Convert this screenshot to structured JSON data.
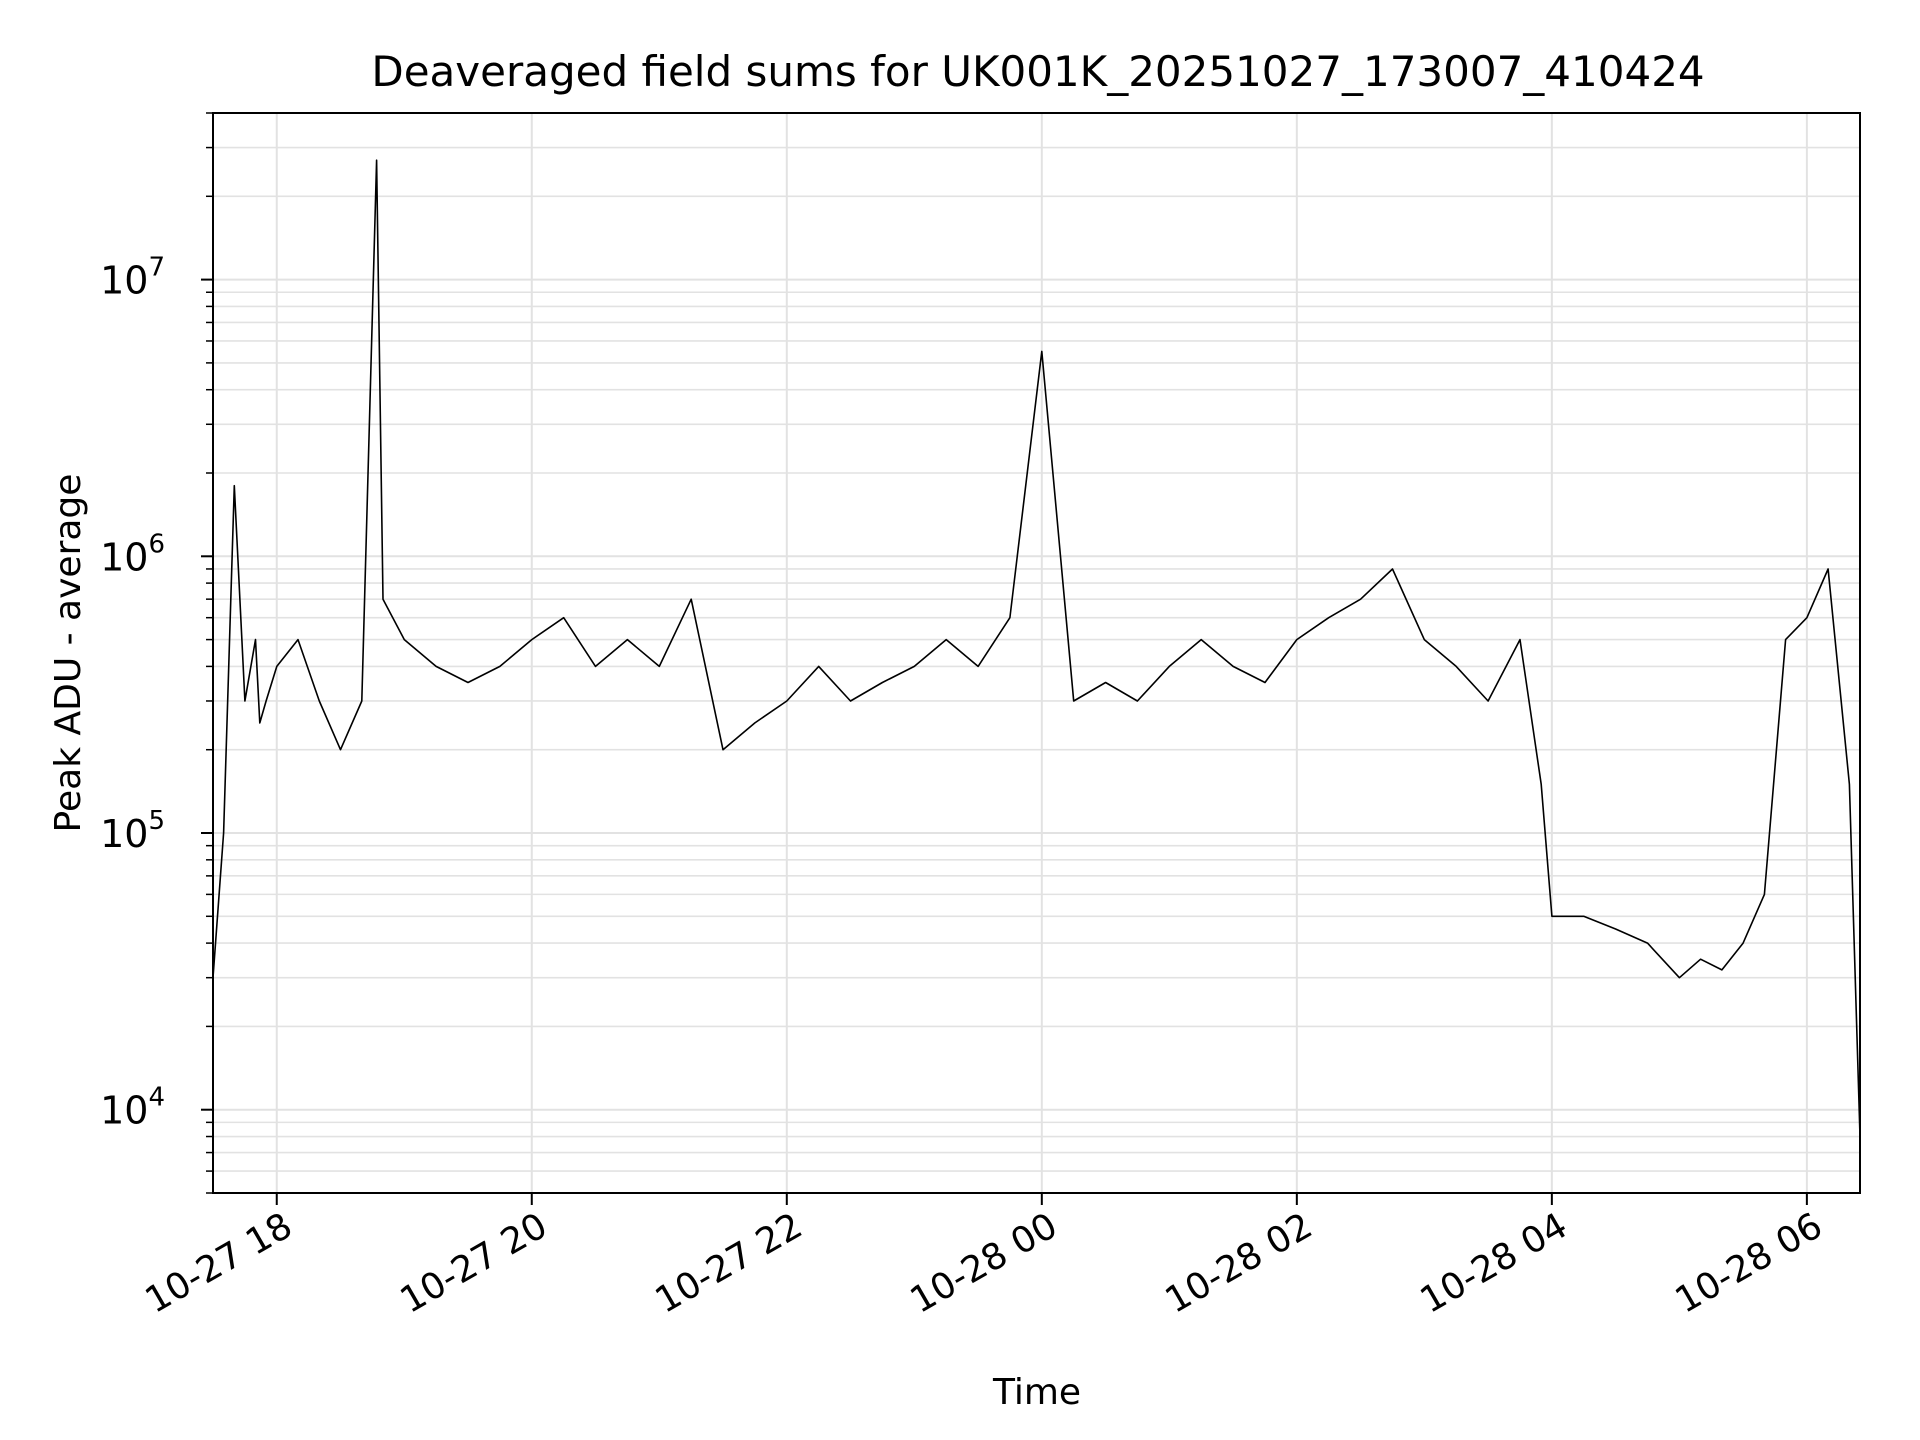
{
  "chart_data": {
    "type": "line",
    "title": "Deaveraged field sums for UK001K_20251027_173007_410424",
    "xlabel": "Time",
    "ylabel": "Peak ADU - average",
    "yscale": "log",
    "ylim": [
      5000,
      40000000
    ],
    "xlim": [
      "2025-10-27 17:30",
      "2025-10-28 06:25"
    ],
    "x_ticks": [
      {
        "t": "2025-10-27 18:00",
        "label": "10-27 18"
      },
      {
        "t": "2025-10-27 20:00",
        "label": "10-27 20"
      },
      {
        "t": "2025-10-27 22:00",
        "label": "10-27 22"
      },
      {
        "t": "2025-10-28 00:00",
        "label": "10-28 00"
      },
      {
        "t": "2025-10-28 02:00",
        "label": "10-28 02"
      },
      {
        "t": "2025-10-28 04:00",
        "label": "10-28 04"
      },
      {
        "t": "2025-10-28 06:00",
        "label": "10-28 06"
      }
    ],
    "y_ticks": [
      {
        "value": 10000,
        "base": "10",
        "exp": "4"
      },
      {
        "value": 100000,
        "base": "10",
        "exp": "5"
      },
      {
        "value": 1000000,
        "base": "10",
        "exp": "6"
      },
      {
        "value": 10000000,
        "base": "10",
        "exp": "7"
      }
    ],
    "grid": true,
    "line_color": "#000000",
    "series": [
      {
        "x": [
          "2025-10-27 17:30",
          "2025-10-27 17:35",
          "2025-10-27 17:40",
          "2025-10-27 17:45",
          "2025-10-27 17:50",
          "2025-10-27 17:52",
          "2025-10-27 17:55",
          "2025-10-27 18:00",
          "2025-10-27 18:10",
          "2025-10-27 18:20",
          "2025-10-27 18:30",
          "2025-10-27 18:40",
          "2025-10-27 18:47",
          "2025-10-27 18:50",
          "2025-10-27 19:00",
          "2025-10-27 19:15",
          "2025-10-27 19:30",
          "2025-10-27 19:45",
          "2025-10-27 20:00",
          "2025-10-27 20:15",
          "2025-10-27 20:30",
          "2025-10-27 20:45",
          "2025-10-27 21:00",
          "2025-10-27 21:15",
          "2025-10-27 21:30",
          "2025-10-27 21:45",
          "2025-10-27 22:00",
          "2025-10-27 22:15",
          "2025-10-27 22:30",
          "2025-10-27 22:45",
          "2025-10-27 23:00",
          "2025-10-27 23:15",
          "2025-10-27 23:30",
          "2025-10-27 23:45",
          "2025-10-28 00:00",
          "2025-10-28 00:15",
          "2025-10-28 00:30",
          "2025-10-28 00:45",
          "2025-10-28 01:00",
          "2025-10-28 01:15",
          "2025-10-28 01:30",
          "2025-10-28 01:45",
          "2025-10-28 02:00",
          "2025-10-28 02:15",
          "2025-10-28 02:30",
          "2025-10-28 02:45",
          "2025-10-28 03:00",
          "2025-10-28 03:15",
          "2025-10-28 03:30",
          "2025-10-28 03:45",
          "2025-10-28 03:55",
          "2025-10-28 04:00",
          "2025-10-28 04:15",
          "2025-10-28 04:30",
          "2025-10-28 04:45",
          "2025-10-28 05:00",
          "2025-10-28 05:10",
          "2025-10-28 05:20",
          "2025-10-28 05:30",
          "2025-10-28 05:40",
          "2025-10-28 05:50",
          "2025-10-28 06:00",
          "2025-10-28 06:10",
          "2025-10-28 06:20",
          "2025-10-28 06:25"
        ],
        "y": [
          30000,
          100000,
          1800000,
          300000,
          500000,
          250000,
          300000,
          400000,
          500000,
          300000,
          200000,
          300000,
          27000000,
          700000,
          500000,
          400000,
          350000,
          400000,
          500000,
          600000,
          400000,
          500000,
          400000,
          700000,
          200000,
          250000,
          300000,
          400000,
          300000,
          350000,
          400000,
          500000,
          400000,
          600000,
          5500000,
          300000,
          350000,
          300000,
          400000,
          500000,
          400000,
          350000,
          500000,
          600000,
          700000,
          900000,
          500000,
          400000,
          300000,
          500000,
          150000,
          50000,
          50000,
          45000,
          40000,
          30000,
          35000,
          32000,
          40000,
          60000,
          500000,
          600000,
          900000,
          150000,
          8000
        ]
      }
    ]
  }
}
